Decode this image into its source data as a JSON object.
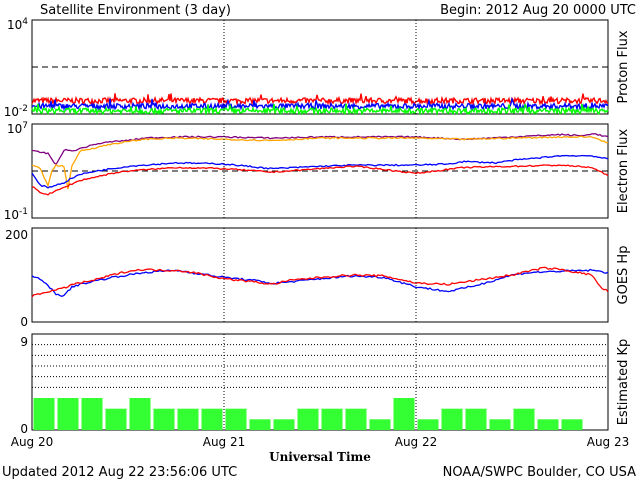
{
  "header": {
    "title": "Satellite Environment (3 day)",
    "begin": "Begin:  2012 Aug 20 0000 UTC"
  },
  "footer": {
    "updated": "Updated 2012 Aug 22 23:56:06 UTC",
    "credit": "NOAA/SWPC Boulder, CO USA"
  },
  "colors": {
    "red": "#ff0000",
    "blue": "#0000ff",
    "green": "#00ff00",
    "orange": "#ffa500",
    "purple": "#800080",
    "kp_bar": "#33ff33"
  },
  "chart_data": [
    {
      "panel": "proton",
      "type": "line",
      "ylabel": "Proton Flux",
      "yscale": "log",
      "ylim_exp": [
        -2,
        4
      ],
      "yticks": [
        {
          "base": "10",
          "exp": "4"
        },
        {
          "base": "10",
          "exp": "-2"
        }
      ],
      "threshold_exp": 1,
      "series": [
        {
          "color": "red",
          "level_exp": -1.15
        },
        {
          "color": "blue",
          "level_exp": -1.5
        },
        {
          "color": "green",
          "level_exp": -1.8
        }
      ]
    },
    {
      "panel": "electron",
      "type": "line",
      "ylabel": "Electron Flux",
      "yscale": "log",
      "ylim_exp": [
        -1,
        7
      ],
      "yticks": [
        {
          "base": "10",
          "exp": "7"
        },
        {
          "base": "10",
          "exp": "-1"
        }
      ],
      "threshold_exp": 3,
      "series": [
        {
          "color": "purple",
          "x": [
            0,
            1,
            2,
            3,
            4,
            5,
            6,
            8,
            10,
            12,
            14,
            18,
            24,
            30,
            36,
            42,
            48,
            54,
            60,
            66,
            69,
            70,
            72
          ],
          "y_exp": [
            4.7,
            4.6,
            4.5,
            3.5,
            4.8,
            4.7,
            4.9,
            5.3,
            5.5,
            5.6,
            5.8,
            5.9,
            5.9,
            5.8,
            5.9,
            5.9,
            5.9,
            5.7,
            5.9,
            6.1,
            6.0,
            6.2,
            5.9
          ]
        },
        {
          "color": "orange",
          "x": [
            0,
            1,
            2,
            2.5,
            3,
            4,
            4.5,
            5,
            6,
            8,
            10,
            12,
            14,
            18,
            24,
            30,
            36,
            42,
            48,
            54,
            60,
            66,
            70,
            72
          ],
          "y_exp": [
            3.5,
            3.2,
            1.8,
            3.0,
            3.5,
            3.4,
            1.5,
            3.4,
            4.7,
            5.0,
            5.3,
            5.5,
            5.7,
            5.8,
            5.7,
            5.6,
            5.8,
            5.8,
            5.8,
            5.7,
            5.8,
            5.9,
            5.9,
            5.4
          ]
        },
        {
          "color": "blue",
          "x": [
            0,
            1,
            2,
            3,
            4,
            5,
            6,
            8,
            10,
            12,
            14,
            18,
            24,
            30,
            36,
            40,
            42,
            48,
            52,
            54,
            58,
            60,
            66,
            70,
            72
          ],
          "y_exp": [
            2.8,
            1.8,
            1.6,
            1.8,
            2.0,
            2.4,
            2.7,
            3.0,
            3.2,
            3.4,
            3.5,
            3.7,
            3.6,
            3.2,
            3.4,
            3.5,
            3.5,
            3.5,
            3.6,
            3.8,
            3.7,
            3.9,
            4.3,
            4.3,
            4.0
          ]
        },
        {
          "color": "red",
          "x": [
            0,
            1,
            2,
            3,
            4,
            5,
            6,
            8,
            10,
            12,
            14,
            18,
            24,
            30,
            36,
            40,
            42,
            48,
            54,
            60,
            66,
            70,
            72
          ],
          "y_exp": [
            1.7,
            1.2,
            1.0,
            1.3,
            1.6,
            1.9,
            2.2,
            2.5,
            2.8,
            3.0,
            3.1,
            3.3,
            3.2,
            2.9,
            3.2,
            3.4,
            3.3,
            2.8,
            3.3,
            3.4,
            3.5,
            3.3,
            2.6
          ]
        }
      ]
    },
    {
      "panel": "hp",
      "type": "line",
      "ylabel": "GOES Hp",
      "ylim": [
        0,
        200
      ],
      "yticks": [
        "200",
        "0"
      ],
      "series": [
        {
          "color": "blue",
          "x": [
            0,
            1,
            2,
            3,
            4,
            5,
            6,
            8,
            10,
            12,
            14,
            16,
            18,
            20,
            24,
            28,
            30,
            32,
            36,
            40,
            44,
            48,
            52,
            54,
            56,
            60,
            62,
            66,
            70,
            72
          ],
          "y": [
            100,
            90,
            78,
            60,
            55,
            75,
            80,
            88,
            95,
            100,
            105,
            108,
            110,
            105,
            95,
            88,
            82,
            85,
            92,
            98,
            95,
            75,
            65,
            72,
            80,
            100,
            105,
            108,
            110,
            105
          ]
        },
        {
          "color": "red",
          "x": [
            0,
            1,
            2,
            3,
            4,
            5,
            6,
            8,
            10,
            12,
            14,
            16,
            18,
            20,
            24,
            28,
            30,
            32,
            36,
            40,
            44,
            48,
            52,
            56,
            60,
            62,
            64,
            66,
            70,
            71,
            72
          ],
          "y": [
            55,
            60,
            65,
            68,
            72,
            80,
            83,
            90,
            100,
            108,
            112,
            110,
            110,
            106,
            92,
            85,
            80,
            88,
            95,
            100,
            98,
            83,
            80,
            90,
            100,
            108,
            115,
            112,
            100,
            75,
            65
          ]
        }
      ]
    },
    {
      "panel": "kp",
      "type": "bar",
      "ylabel": "Estimated Kp",
      "ylim": [
        0,
        9
      ],
      "yticks": [
        "9",
        "0"
      ],
      "dotted_levels": [
        4,
        5,
        6,
        7,
        8
      ],
      "values": [
        3,
        3,
        3,
        2,
        3,
        2,
        2,
        2,
        2,
        1,
        1,
        2,
        2,
        2,
        1,
        3,
        1,
        2,
        2,
        1,
        2,
        1,
        1,
        0
      ]
    }
  ],
  "x_axis": {
    "title": "Universal Time",
    "days": 3,
    "tick_labels": [
      "Aug 20",
      "Aug 21",
      "Aug 22",
      "Aug 23"
    ]
  }
}
